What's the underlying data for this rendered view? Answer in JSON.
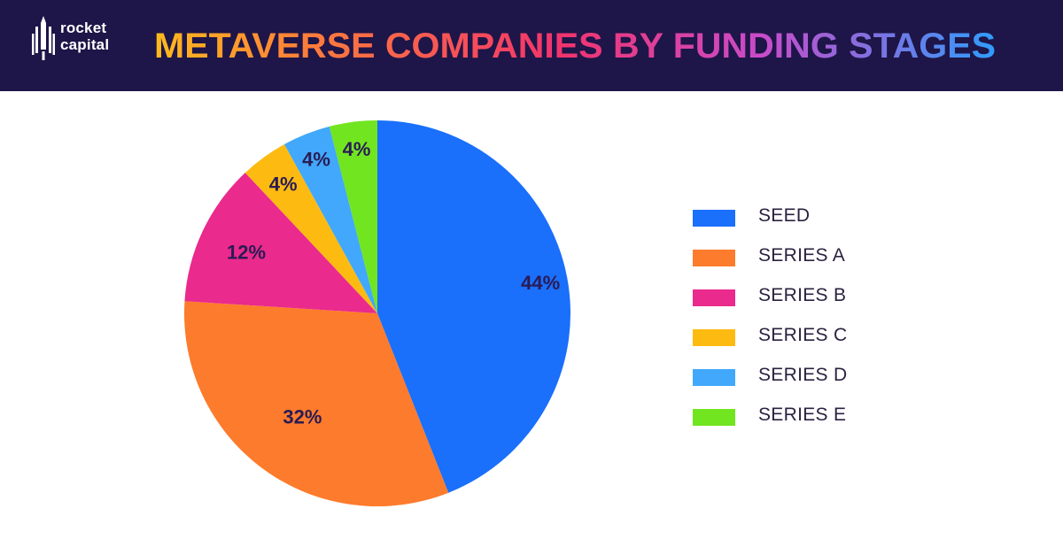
{
  "brand": {
    "line1": "rocket",
    "line2": "capital"
  },
  "chart_data": {
    "type": "pie",
    "title": "METAVERSE COMPANIES BY FUNDING STAGES",
    "categories": [
      "SEED",
      "SERIES A",
      "SERIES B",
      "SERIES C",
      "SERIES D",
      "SERIES E"
    ],
    "values": [
      44,
      32,
      12,
      4,
      4,
      4
    ],
    "labels": [
      "44%",
      "32%",
      "12%",
      "4%",
      "4%",
      "4%"
    ],
    "colors": [
      "#1a6ffb",
      "#fd7b2c",
      "#ea2a8c",
      "#fdbb11",
      "#41a8fb",
      "#71e520"
    ],
    "legend_position": "right"
  }
}
